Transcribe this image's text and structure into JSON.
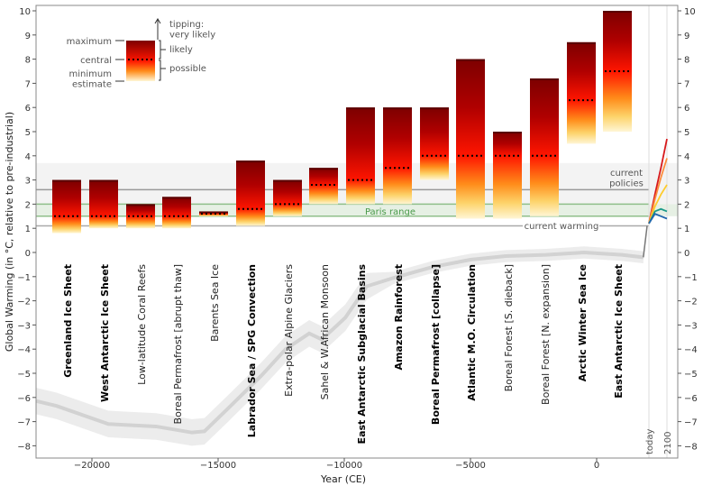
{
  "chart_data": {
    "type": "bar",
    "xlabel": "Year (CE)",
    "ylabel": "Global Warming (in °C, relative to pre-industrial)",
    "xlim": [
      -22000,
      2000
    ],
    "ylim": [
      -8,
      10
    ],
    "xticks": [
      -20000,
      -15000,
      -10000,
      -5000,
      0
    ],
    "yticks": [
      -8,
      -7,
      -6,
      -5,
      -4,
      -3,
      -2,
      -1,
      0,
      1,
      2,
      3,
      4,
      5,
      6,
      7,
      8,
      9,
      10
    ],
    "tick_labels_x": [
      "−20000",
      "−15000",
      "−10000",
      "−5000",
      "0"
    ],
    "tipping_elements": [
      {
        "name": "Greenland Ice Sheet",
        "bold": true,
        "min": 0.8,
        "central": 1.5,
        "max": 3.0
      },
      {
        "name": "West Antarctic Ice Sheet",
        "bold": true,
        "min": 1.0,
        "central": 1.5,
        "max": 3.0
      },
      {
        "name": "Low-latitude Coral Reefs",
        "bold": false,
        "min": 1.0,
        "central": 1.5,
        "max": 2.0
      },
      {
        "name": "Boreal Permafrost [abrupt thaw]",
        "bold": false,
        "min": 1.0,
        "central": 1.5,
        "max": 2.3
      },
      {
        "name": "Barents Sea Ice",
        "bold": false,
        "min": 1.5,
        "central": 1.6,
        "max": 1.7
      },
      {
        "name": "Labrador Sea / SPG Convection",
        "bold": true,
        "min": 1.1,
        "central": 1.8,
        "max": 3.8
      },
      {
        "name": "Extra-polar Alpine Glaciers",
        "bold": false,
        "min": 1.5,
        "central": 2.0,
        "max": 3.0
      },
      {
        "name": "Sahel & W.African Monsoon",
        "bold": false,
        "min": 2.0,
        "central": 2.8,
        "max": 3.5
      },
      {
        "name": "East Antarctic Subglacial Basins",
        "bold": true,
        "min": 2.0,
        "central": 3.0,
        "max": 6.0
      },
      {
        "name": "Amazon Rainforest",
        "bold": true,
        "min": 2.0,
        "central": 3.5,
        "max": 6.0
      },
      {
        "name": "Boreal Permafrost [collapse]",
        "bold": true,
        "min": 3.0,
        "central": 4.0,
        "max": 6.0
      },
      {
        "name": "Atlantic M.O. Circulation",
        "bold": true,
        "min": 1.4,
        "central": 4.0,
        "max": 8.0
      },
      {
        "name": "Boreal Forest [S. dieback]",
        "bold": false,
        "min": 1.4,
        "central": 4.0,
        "max": 5.0
      },
      {
        "name": "Boreal Forest [N. expansion]",
        "bold": false,
        "min": 1.5,
        "central": 4.0,
        "max": 7.2
      },
      {
        "name": "Arctic Winter Sea Ice",
        "bold": true,
        "min": 4.5,
        "central": 6.3,
        "max": 8.7
      },
      {
        "name": "East Antarctic Ice Sheet",
        "bold": true,
        "min": 5.0,
        "central": 7.5,
        "max": 10.0
      }
    ],
    "bands": {
      "current_policies": {
        "label": "current\npolicies",
        "low": 2.0,
        "high": 3.7,
        "line": 2.6
      },
      "paris": {
        "label": "Paris range",
        "low": 1.5,
        "high": 2.0
      },
      "current_warming": {
        "label": "current warming",
        "value": 1.1
      }
    },
    "temperature_history": {
      "x": [
        -22200,
        -21400,
        -19350,
        -17460,
        -16040,
        -15540,
        -14600,
        -13290,
        -12320,
        -11390,
        -10890,
        -9960,
        -9110,
        -8040,
        -6500,
        -5000,
        -3600,
        -2000,
        -500,
        1000,
        1850,
        2000
      ],
      "y": [
        -6.15,
        -6.35,
        -7.1,
        -7.2,
        -7.45,
        -7.4,
        -6.45,
        -5.1,
        -4.0,
        -3.35,
        -3.6,
        -2.7,
        -1.4,
        -1.05,
        -0.6,
        -0.3,
        -0.15,
        -0.1,
        0.0,
        -0.1,
        -0.2,
        1.1
      ]
    },
    "scenarios": {
      "x_labels": [
        "today",
        "2100"
      ],
      "series": [
        {
          "color": "#d7191c",
          "y": [
            1.2,
            2.4,
            3.5,
            4.7
          ]
        },
        {
          "color": "#fd8d3c",
          "y": [
            1.2,
            2.2,
            3.1,
            3.9
          ]
        },
        {
          "color": "#fecc2c",
          "y": [
            1.2,
            1.9,
            2.4,
            2.8
          ]
        },
        {
          "color": "#1a9a8a",
          "y": [
            1.2,
            1.7,
            1.8,
            1.7
          ]
        },
        {
          "color": "#2166ac",
          "y": [
            1.2,
            1.6,
            1.5,
            1.4
          ]
        }
      ]
    },
    "legend": {
      "maximum": "maximum",
      "central": "central",
      "minimum": "minimum\nestimate",
      "tipping": "tipping:\nvery likely",
      "likely": "likely",
      "possible": "possible"
    }
  }
}
